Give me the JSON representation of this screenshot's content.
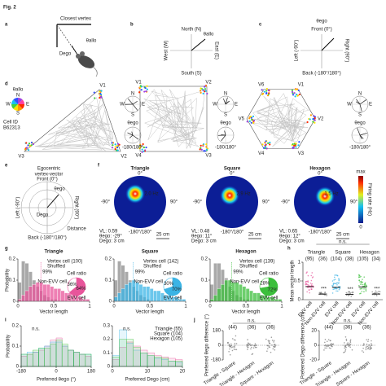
{
  "figure_label": "Fig. 2",
  "panel_labels": [
    "a",
    "b",
    "c",
    "d",
    "e",
    "f",
    "g",
    "h",
    "i",
    "j"
  ],
  "a": {
    "vertex": "Closest vertex",
    "theta": "θallo",
    "dist": "Dego"
  },
  "b": {
    "theta": "θallo",
    "north": "North (N)",
    "south": "South (S)",
    "west": "West (W)",
    "east": "East (E)"
  },
  "c": {
    "theta": "θego",
    "front": "Front (0°)",
    "back": "Back (-180°/180°)",
    "left": "Left (-90°)",
    "right": "Right (90°)"
  },
  "d": {
    "theta_allo": "θallo",
    "compass": [
      "N",
      "W",
      "E",
      "S"
    ],
    "cell": [
      "Cell ID",
      "B62313"
    ],
    "arenas": [
      {
        "vertices": [
          "V1",
          "V2",
          "V3"
        ]
      },
      {
        "vertices": [
          "V1",
          "V2",
          "V3",
          "V4"
        ]
      },
      {
        "vertices": [
          "V1",
          "V2",
          "V3",
          "V4",
          "V5",
          "V6"
        ]
      }
    ],
    "theta_ego": "θego",
    "back": "-180/180°"
  },
  "e": {
    "title": [
      "Egocentric",
      "vertex-vector"
    ],
    "front": "Front (0°)",
    "back": "Back (-180°/180°)",
    "left": "Left (-90°)",
    "right": "Right (90°)",
    "theta": "θego",
    "dist": "Dego",
    "distance": "Distance"
  },
  "f": {
    "maps": [
      {
        "title": "Triangle",
        "peak": "2.0 Hz",
        "stats": [
          "VL: 0.59",
          "θego: -29°",
          "Dego: 3 cm"
        ]
      },
      {
        "title": "Square",
        "peak": "2.9 Hz",
        "stats": [
          "VL: 0.48",
          "θego: 11°",
          "Dego: 3 cm"
        ]
      },
      {
        "title": "Hexagon",
        "peak": "1.5 Hz",
        "stats": [
          "VL: 0.65",
          "θego: 12°",
          "Dego: 3 cm"
        ]
      }
    ],
    "front": "0°",
    "left": "-90°",
    "right": "90°",
    "back": "-180°/180°",
    "scale": "25 cm",
    "colorbar": {
      "max": "max",
      "min": "0",
      "label": "Firing rate (Hz)"
    }
  },
  "g": {
    "ylabel": "Probability",
    "xlabel": "Vector length",
    "ratio_title": "Cell ratio",
    "histograms": [
      {
        "title": "Triangle",
        "bins": [
          0,
          0.05,
          0.1,
          0.15,
          0.2,
          0.25,
          0.3,
          0.35,
          0.4,
          0.45,
          0.5,
          0.55,
          0.6,
          0.65,
          0.7,
          0.75,
          0.8,
          0.85,
          0.9,
          0.95,
          1
        ],
        "xlim": [
          0,
          1
        ],
        "ylim": [
          0,
          0.2
        ],
        "xticks": [
          0,
          0.5,
          1
        ],
        "yticks": [
          0,
          0.1,
          0.2
        ],
        "threshold": 0.32,
        "threshold_label": "99%",
        "series": [
          {
            "name": "Vertex cell (100)",
            "color": "#e8559b",
            "values": [
              0.01,
              0.03,
              0.05,
              0.07,
              0.08,
              0.09,
              0.09,
              0.08,
              0.08,
              0.07,
              0.06,
              0.06,
              0.05,
              0.04,
              0.04,
              0.03,
              0.03,
              0.02,
              0.01,
              0.01
            ]
          },
          {
            "name": "Shuffled",
            "color": "#8c8c8c",
            "values": [
              0.09,
              0.19,
              0.18,
              0.14,
              0.1,
              0.07,
              0.05,
              0.03,
              0.02,
              0.01,
              0.01,
              0,
              0,
              0,
              0,
              0,
              0,
              0,
              0,
              0
            ]
          }
        ],
        "ratio": {
          "categories": [
            "Non-EVV cell",
            "EVV cell"
          ],
          "values": [
            64,
            36
          ],
          "value_labels": [
            "64%",
            "36%"
          ],
          "colors": [
            "#e8559b",
            "#ffffff"
          ]
        }
      },
      {
        "title": "Square",
        "bins": [
          0,
          0.05,
          0.1,
          0.15,
          0.2,
          0.25,
          0.3,
          0.35,
          0.4,
          0.45,
          0.5,
          0.55,
          0.6,
          0.65,
          0.7,
          0.75,
          0.8,
          0.85,
          0.9,
          0.95,
          1
        ],
        "xlim": [
          0,
          1
        ],
        "ylim": [
          0,
          0.2
        ],
        "xticks": [
          0,
          0.5,
          1
        ],
        "yticks": [
          0,
          0.1,
          0.2
        ],
        "threshold": 0.27,
        "threshold_label": "99%",
        "series": [
          {
            "name": "Vertex cell (142)",
            "color": "#3bb4e5",
            "values": [
              0.02,
              0.04,
              0.06,
              0.08,
              0.09,
              0.1,
              0.09,
              0.08,
              0.07,
              0.07,
              0.06,
              0.05,
              0.05,
              0.04,
              0.03,
              0.03,
              0.02,
              0.02,
              0.01,
              0.01
            ]
          },
          {
            "name": "Shuffled",
            "color": "#8c8c8c",
            "values": [
              0.1,
              0.19,
              0.17,
              0.14,
              0.1,
              0.07,
              0.05,
              0.03,
              0.02,
              0.01,
              0,
              0,
              0,
              0,
              0,
              0,
              0,
              0,
              0,
              0
            ]
          }
        ],
        "ratio": {
          "categories": [
            "Non-EVV cell",
            "EVV cell"
          ],
          "values": [
            70,
            30
          ],
          "value_labels": [
            "70%",
            "30%"
          ],
          "colors": [
            "#3bb4e5",
            "#ffffff"
          ]
        }
      },
      {
        "title": "Hexagon",
        "bins": [
          0,
          0.05,
          0.1,
          0.15,
          0.2,
          0.25,
          0.3,
          0.35,
          0.4,
          0.45,
          0.5,
          0.55,
          0.6,
          0.65,
          0.7,
          0.75,
          0.8,
          0.85,
          0.9,
          0.95,
          1
        ],
        "xlim": [
          0,
          1
        ],
        "ylim": [
          0,
          0.2
        ],
        "xticks": [
          0,
          0.5,
          1
        ],
        "yticks": [
          0,
          0.1,
          0.2
        ],
        "threshold": 0.3,
        "threshold_label": "99%",
        "series": [
          {
            "name": "Vertex cell (139)",
            "color": "#3cbf3c",
            "values": [
              0.01,
              0.03,
              0.06,
              0.08,
              0.1,
              0.1,
              0.09,
              0.09,
              0.08,
              0.07,
              0.06,
              0.05,
              0.04,
              0.04,
              0.03,
              0.03,
              0.02,
              0.02,
              0.01,
              0.01
            ]
          },
          {
            "name": "Shuffled",
            "color": "#8c8c8c",
            "values": [
              0.08,
              0.18,
              0.18,
              0.15,
              0.11,
              0.07,
              0.05,
              0.03,
              0.02,
              0.01,
              0.01,
              0,
              0,
              0,
              0,
              0,
              0,
              0,
              0,
              0
            ]
          }
        ],
        "ratio": {
          "categories": [
            "Non-EVV cell",
            "EVV cell"
          ],
          "values": [
            72,
            28
          ],
          "value_labels": [
            "72%",
            "28%"
          ],
          "colors": [
            "#3cbf3c",
            "#ffffff"
          ]
        }
      }
    ]
  },
  "h": {
    "ylabel": "Mean vector length",
    "groups": [
      "Triangle",
      "Square",
      "Hexagon"
    ],
    "counts": [
      "(95)",
      "(36)",
      "(104)",
      "(38)",
      "(105)",
      "(34)"
    ],
    "xlabels": [
      "EVV cell",
      "Non-EVV cell"
    ],
    "ylim": [
      0,
      1
    ],
    "yticks": [
      0,
      0.5,
      1
    ],
    "medians": [
      0.35,
      0.15,
      0.33,
      0.14,
      0.34,
      0.15
    ],
    "colors": [
      "#e8559b",
      "#3bb4e5",
      "#3cbf3c"
    ],
    "ns": "n.s.",
    "sig": "***"
  },
  "i": {
    "ylabel": "Probability",
    "series_names": [
      "Triangle (55)",
      "Square (104)",
      "Hexagon (105)"
    ],
    "colors": [
      "#e8559b",
      "#3bb4e5",
      "#3cbf3c"
    ],
    "ns": "n.s.",
    "plots": [
      {
        "xlabel": "Preferred θego (°)",
        "bins": [
          -180,
          -150,
          -120,
          -90,
          -60,
          -30,
          0,
          30,
          60,
          90,
          120,
          150,
          180
        ],
        "xlim": [
          -180,
          180
        ],
        "xticks": [
          -180,
          0,
          180
        ],
        "ylim": [
          0,
          0.2
        ],
        "yticks": [
          0,
          0.1,
          0.2
        ],
        "series": [
          [
            0.05,
            0.06,
            0.07,
            0.08,
            0.1,
            0.13,
            0.14,
            0.1,
            0.08,
            0.07,
            0.06,
            0.05
          ],
          [
            0.06,
            0.07,
            0.07,
            0.09,
            0.1,
            0.12,
            0.12,
            0.1,
            0.08,
            0.07,
            0.06,
            0.06
          ],
          [
            0.06,
            0.06,
            0.08,
            0.09,
            0.09,
            0.11,
            0.13,
            0.11,
            0.08,
            0.07,
            0.06,
            0.06
          ]
        ]
      },
      {
        "xlabel": "Preferred Dego (cm)",
        "bins": [
          0,
          2,
          4,
          6,
          8,
          10,
          12,
          14,
          16,
          18,
          20
        ],
        "xlim": [
          0,
          20
        ],
        "xticks": [
          0,
          10,
          20
        ],
        "ylim": [
          0,
          0.3
        ],
        "yticks": [
          0,
          0.1,
          0.2,
          0.3
        ],
        "series": [
          [
            0.05,
            0.14,
            0.18,
            0.15,
            0.12,
            0.1,
            0.08,
            0.07,
            0.06,
            0.05
          ],
          [
            0.08,
            0.27,
            0.17,
            0.12,
            0.1,
            0.08,
            0.06,
            0.05,
            0.04,
            0.03
          ],
          [
            0.07,
            0.2,
            0.2,
            0.14,
            0.1,
            0.08,
            0.07,
            0.06,
            0.04,
            0.04
          ]
        ]
      }
    ]
  },
  "j": {
    "plots": [
      {
        "ylabel": "Preferred θego difference (°)",
        "ylim": [
          -180,
          180
        ],
        "yticks": [
          -180,
          0,
          180
        ]
      },
      {
        "ylabel": "Preferred Dego difference (cm)",
        "ylim": [
          -20,
          20
        ],
        "yticks": [
          -20,
          0,
          20
        ]
      }
    ],
    "counts": [
      "(44)",
      "(36)",
      "(36)"
    ],
    "ns": "n.s.",
    "xlabels": [
      "Triangle - Square",
      "Triangle - Hexagon",
      "Square - Hexagon"
    ]
  }
}
